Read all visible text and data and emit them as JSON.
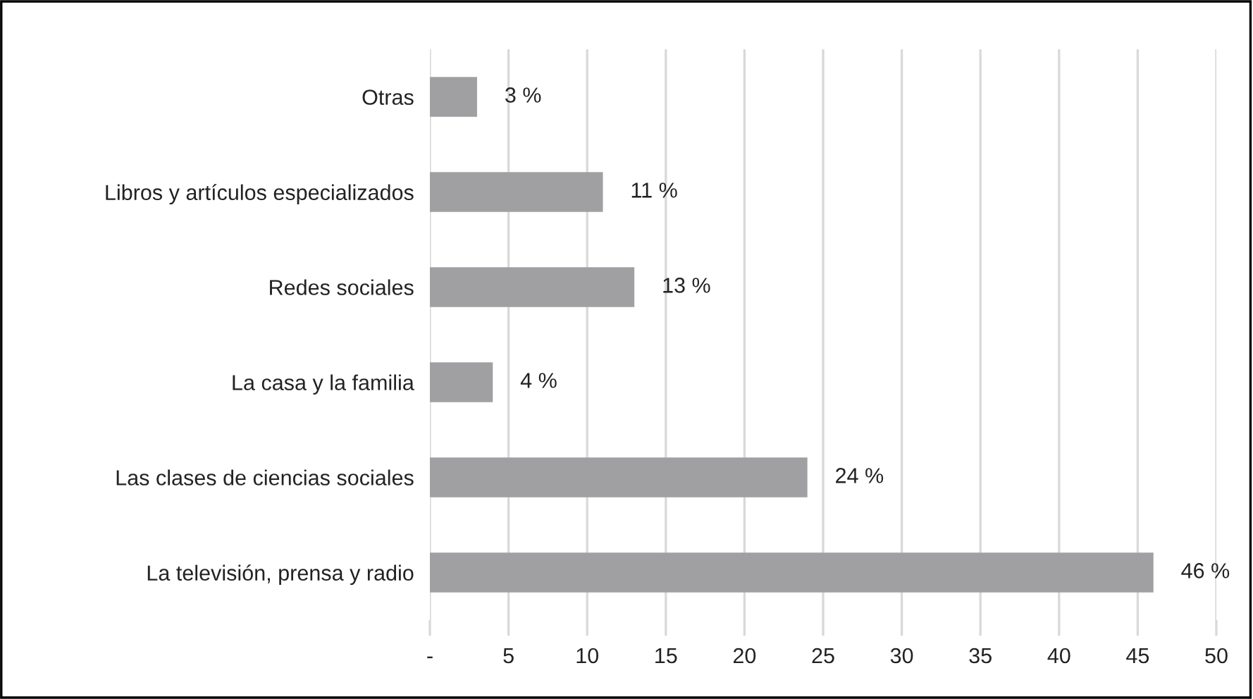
{
  "chart_data": {
    "type": "bar",
    "orientation": "horizontal",
    "categories": [
      "Otras",
      "Libros y artículos especializados",
      "Redes sociales",
      "La casa y la familia",
      "Las clases de ciencias sociales",
      "La televisión, prensa y radio"
    ],
    "values": [
      3,
      11,
      13,
      4,
      24,
      46
    ],
    "value_labels": [
      "3 %",
      "11 %",
      "13 %",
      "4 %",
      "24 %",
      "46 %"
    ],
    "color": "#a0a0a3",
    "xlim": [
      0,
      50
    ],
    "xticks": [
      {
        "value": 0,
        "label": "-"
      },
      5,
      10,
      15,
      20,
      25,
      30,
      35,
      40,
      45,
      50
    ],
    "grid": "x"
  }
}
